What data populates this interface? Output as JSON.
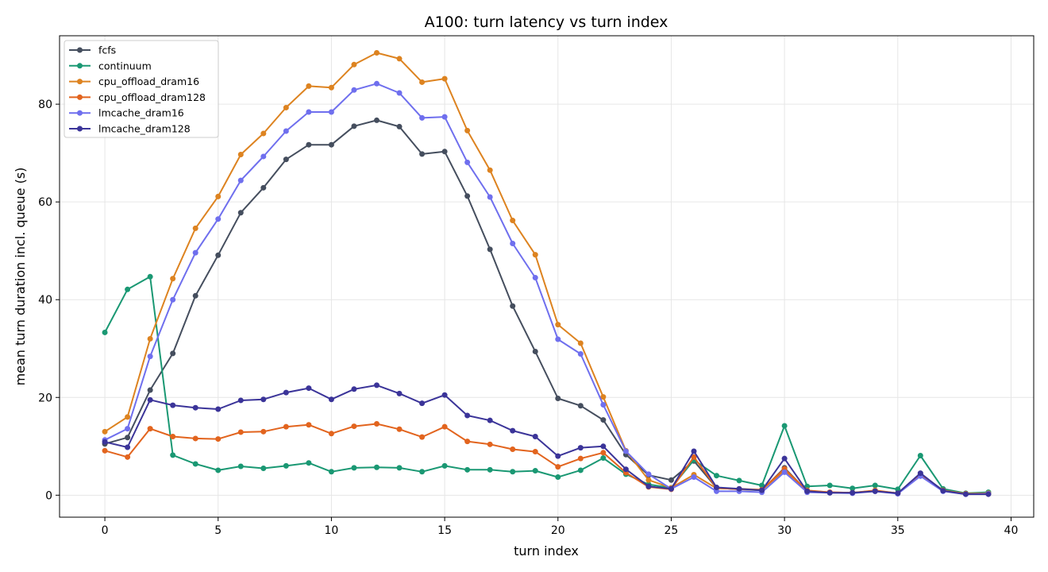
{
  "chart_data": {
    "type": "line",
    "title": "A100: turn latency vs turn index",
    "xlabel": "turn index",
    "ylabel": "mean turn duration incl. queue (s)",
    "xlim": [
      -2,
      41
    ],
    "ylim": [
      -4.5,
      94
    ],
    "xticks": [
      0,
      5,
      10,
      15,
      20,
      25,
      30,
      35,
      40
    ],
    "yticks": [
      0,
      20,
      40,
      60,
      80
    ],
    "grid": true,
    "legend_position": "top-left",
    "x": [
      0,
      1,
      2,
      3,
      4,
      5,
      6,
      7,
      8,
      9,
      10,
      11,
      12,
      13,
      14,
      15,
      16,
      17,
      18,
      19,
      20,
      21,
      22,
      23,
      24,
      25,
      26,
      27,
      28,
      29,
      30,
      31,
      32,
      33,
      34,
      35,
      36,
      37,
      38,
      39
    ],
    "series": [
      {
        "name": "fcfs",
        "color": "#454e5e",
        "values": [
          10.5,
          11.8,
          21.5,
          29.0,
          40.8,
          49.1,
          57.8,
          62.9,
          68.7,
          71.7,
          71.7,
          75.5,
          76.7,
          75.4,
          69.8,
          70.3,
          61.2,
          50.3,
          38.7,
          29.4,
          19.8,
          18.3,
          15.4,
          8.3,
          4.1,
          3.1,
          7.0,
          1.5,
          1.2,
          1.0,
          5.6,
          0.8,
          0.5,
          0.5,
          0.9,
          0.4,
          4.3,
          1.0,
          0.3,
          0.3
        ]
      },
      {
        "name": "continuum",
        "color": "#1a9873",
        "values": [
          33.3,
          42.1,
          44.7,
          8.2,
          6.4,
          5.1,
          5.9,
          5.5,
          6.0,
          6.6,
          4.8,
          5.6,
          5.7,
          5.6,
          4.8,
          6.0,
          5.2,
          5.2,
          4.8,
          5.0,
          3.7,
          5.1,
          7.6,
          4.3,
          2.2,
          1.5,
          7.2,
          4.0,
          3.0,
          2.0,
          14.2,
          1.8,
          2.0,
          1.4,
          2.0,
          1.2,
          8.1,
          1.3,
          0.4,
          0.6
        ]
      },
      {
        "name": "cpu_offload_dram16",
        "color": "#dd8320",
        "values": [
          13.0,
          16.0,
          32.0,
          44.3,
          54.6,
          61.1,
          69.7,
          74.0,
          79.3,
          83.7,
          83.4,
          88.1,
          90.5,
          89.3,
          84.5,
          85.2,
          74.6,
          66.5,
          56.2,
          49.2,
          34.9,
          31.1,
          20.1,
          9.1,
          3.1,
          1.5,
          4.2,
          1.4,
          1.3,
          1.1,
          5.0,
          1.0,
          0.6,
          0.5,
          1.0,
          0.4,
          4.1,
          1.0,
          0.3,
          0.4
        ]
      },
      {
        "name": "cpu_offload_dram128",
        "color": "#e2641e",
        "values": [
          9.1,
          7.8,
          13.6,
          12.0,
          11.6,
          11.5,
          12.9,
          13.0,
          14.0,
          14.4,
          12.6,
          14.1,
          14.6,
          13.5,
          11.9,
          14.0,
          11.0,
          10.4,
          9.4,
          8.9,
          5.8,
          7.5,
          8.7,
          4.6,
          1.7,
          1.2,
          7.8,
          1.5,
          1.2,
          1.1,
          5.4,
          0.9,
          0.6,
          0.5,
          0.9,
          0.4,
          4.1,
          0.9,
          0.3,
          0.3
        ]
      },
      {
        "name": "lmcache_dram16",
        "color": "#6f6fee",
        "values": [
          11.3,
          13.6,
          28.4,
          40.0,
          49.6,
          56.5,
          64.4,
          69.3,
          74.5,
          78.4,
          78.4,
          82.9,
          84.2,
          82.3,
          77.2,
          77.4,
          68.1,
          61.0,
          51.5,
          44.5,
          31.9,
          28.9,
          18.5,
          9.0,
          4.3,
          1.3,
          3.7,
          0.8,
          0.8,
          0.6,
          4.7,
          0.6,
          0.5,
          0.4,
          0.8,
          0.3,
          3.9,
          0.8,
          0.2,
          0.3
        ]
      },
      {
        "name": "lmcache_dram128",
        "color": "#3b3499",
        "values": [
          10.9,
          9.8,
          19.5,
          18.4,
          17.9,
          17.6,
          19.4,
          19.6,
          21.0,
          21.9,
          19.6,
          21.7,
          22.5,
          20.8,
          18.8,
          20.5,
          16.3,
          15.3,
          13.2,
          12.0,
          8.0,
          9.7,
          10.0,
          5.3,
          1.8,
          1.3,
          9.0,
          1.6,
          1.3,
          1.0,
          7.5,
          0.8,
          0.5,
          0.5,
          0.8,
          0.4,
          4.5,
          0.9,
          0.2,
          0.2
        ]
      }
    ]
  }
}
